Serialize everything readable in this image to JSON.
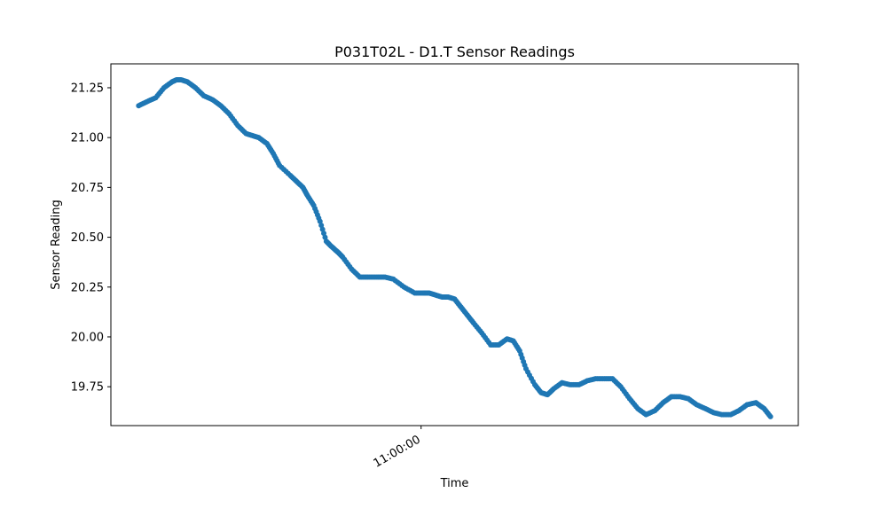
{
  "chart_data": {
    "type": "scatter",
    "title": "P031T02L - D1.T Sensor Readings",
    "xlabel": "Time",
    "ylabel": "Sensor Reading",
    "x_tick_labels": [
      {
        "label": "11:00:00",
        "x": 0.447
      }
    ],
    "y_ticks": [
      "19.75",
      "20.00",
      "20.25",
      "20.50",
      "20.75",
      "21.00",
      "21.25"
    ],
    "xlim": [
      -0.044,
      1.044
    ],
    "ylim": [
      19.555,
      21.37
    ],
    "grid": false,
    "marker_color": "#1f77b4",
    "x": [
      0.0,
      0.013,
      0.027,
      0.04,
      0.053,
      0.06,
      0.067,
      0.077,
      0.09,
      0.103,
      0.117,
      0.13,
      0.143,
      0.157,
      0.17,
      0.18,
      0.19,
      0.203,
      0.213,
      0.223,
      0.24,
      0.25,
      0.26,
      0.267,
      0.277,
      0.287,
      0.297,
      0.303,
      0.31,
      0.317,
      0.323,
      0.337,
      0.35,
      0.363,
      0.377,
      0.39,
      0.403,
      0.42,
      0.437,
      0.45,
      0.46,
      0.47,
      0.48,
      0.49,
      0.5,
      0.51,
      0.52,
      0.53,
      0.543,
      0.557,
      0.57,
      0.583,
      0.593,
      0.603,
      0.613,
      0.627,
      0.637,
      0.647,
      0.657,
      0.67,
      0.683,
      0.697,
      0.71,
      0.723,
      0.737,
      0.75,
      0.763,
      0.777,
      0.79,
      0.803,
      0.817,
      0.83,
      0.843,
      0.857,
      0.87,
      0.883,
      0.897,
      0.91,
      0.923,
      0.937,
      0.95,
      0.963,
      0.977,
      0.99,
      1.0
    ],
    "y": [
      21.16,
      21.18,
      21.2,
      21.25,
      21.28,
      21.29,
      21.29,
      21.28,
      21.25,
      21.21,
      21.19,
      21.16,
      21.12,
      21.06,
      21.02,
      21.01,
      21.0,
      20.97,
      20.92,
      20.86,
      20.81,
      20.78,
      20.75,
      20.71,
      20.66,
      20.58,
      20.48,
      20.46,
      20.44,
      20.42,
      20.4,
      20.34,
      20.3,
      20.3,
      20.3,
      20.3,
      20.29,
      20.25,
      20.22,
      20.22,
      20.22,
      20.21,
      20.2,
      20.2,
      20.19,
      20.15,
      20.11,
      20.07,
      20.02,
      19.96,
      19.96,
      19.99,
      19.98,
      19.93,
      19.84,
      19.76,
      19.72,
      19.71,
      19.74,
      19.77,
      19.76,
      19.76,
      19.78,
      19.79,
      19.79,
      19.79,
      19.75,
      19.69,
      19.64,
      19.61,
      19.63,
      19.67,
      19.7,
      19.7,
      19.69,
      19.66,
      19.64,
      19.62,
      19.61,
      19.61,
      19.63,
      19.66,
      19.67,
      19.64,
      19.6
    ]
  }
}
